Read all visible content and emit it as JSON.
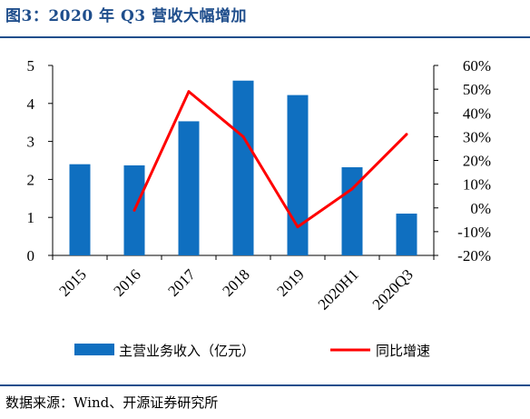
{
  "title": "图3：2020 年 Q3 营收大幅增加",
  "source": "数据来源：Wind、开源证券研究所",
  "colors": {
    "bar": "#0f6fc0",
    "line": "#ff0000",
    "title": "#1f4e8c",
    "rule": "#1f4e8c"
  },
  "chart_data": {
    "type": "bar",
    "categories": [
      "2015",
      "2016",
      "2017",
      "2018",
      "2019",
      "2020H1",
      "2020Q3"
    ],
    "series": [
      {
        "name": "主营业务收入（亿元）",
        "type": "bar",
        "axis": "left",
        "values": [
          2.4,
          2.37,
          3.53,
          4.6,
          4.22,
          2.32,
          1.1
        ]
      },
      {
        "name": "同比增速",
        "type": "line",
        "axis": "right",
        "unit": "%",
        "values": [
          null,
          -1,
          49,
          30,
          -8,
          8,
          31
        ]
      }
    ],
    "y_left": {
      "lim": [
        0,
        5
      ],
      "ticks": [
        "0",
        "1",
        "2",
        "3",
        "4",
        "5"
      ]
    },
    "y_right": {
      "lim": [
        -20,
        60
      ],
      "ticks": [
        "-20%",
        "-10%",
        "0%",
        "10%",
        "20%",
        "30%",
        "40%",
        "50%",
        "60%"
      ]
    },
    "legend": {
      "placement": "bottom"
    },
    "grid": false
  }
}
